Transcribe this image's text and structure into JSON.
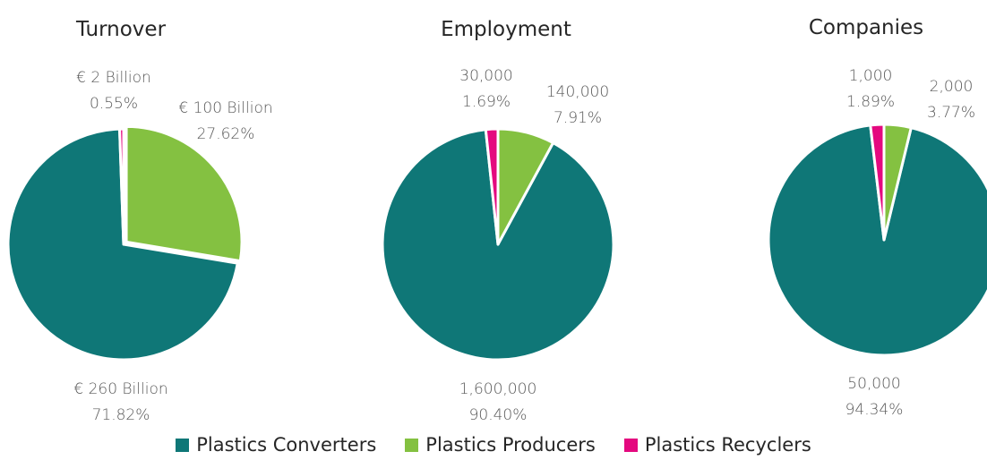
{
  "chart_data": [
    {
      "type": "pie",
      "title": "Turnover",
      "slices": [
        {
          "name": "Plastics Converters",
          "value": 260,
          "value_label": "€ 260 Billion",
          "percent_label": "71.82%",
          "color": "#0f7777"
        },
        {
          "name": "Plastics Producers",
          "value": 100,
          "value_label": "€ 100 Billion",
          "percent_label": "27.62%",
          "color": "#84c141"
        },
        {
          "name": "Plastics Recyclers",
          "value": 2,
          "value_label": "€ 2 Billion",
          "percent_label": "0.55%",
          "color": "#e4097f"
        }
      ]
    },
    {
      "type": "pie",
      "title": "Employment",
      "slices": [
        {
          "name": "Plastics Converters",
          "value": 1600000,
          "value_label": "1,600,000",
          "percent_label": "90.40%",
          "color": "#0f7777"
        },
        {
          "name": "Plastics Producers",
          "value": 140000,
          "value_label": "140,000",
          "percent_label": "7.91%",
          "color": "#84c141"
        },
        {
          "name": "Plastics Recyclers",
          "value": 30000,
          "value_label": "30,000",
          "percent_label": "1.69%",
          "color": "#e4097f"
        }
      ]
    },
    {
      "type": "pie",
      "title": "Companies",
      "slices": [
        {
          "name": "Plastics Converters",
          "value": 50000,
          "value_label": "50,000",
          "percent_label": "94.34%",
          "color": "#0f7777"
        },
        {
          "name": "Plastics Producers",
          "value": 2000,
          "value_label": "2,000",
          "percent_label": "3.77%",
          "color": "#84c141"
        },
        {
          "name": "Plastics Recyclers",
          "value": 1000,
          "value_label": "1,000",
          "percent_label": "1.89%",
          "color": "#e4097f"
        }
      ]
    }
  ],
  "legend": {
    "position": "bottom",
    "items": [
      {
        "label": "Plastics Converters",
        "color": "#0f7777"
      },
      {
        "label": "Plastics Producers",
        "color": "#84c141"
      },
      {
        "label": "Plastics Recyclers",
        "color": "#e4097f"
      }
    ]
  }
}
